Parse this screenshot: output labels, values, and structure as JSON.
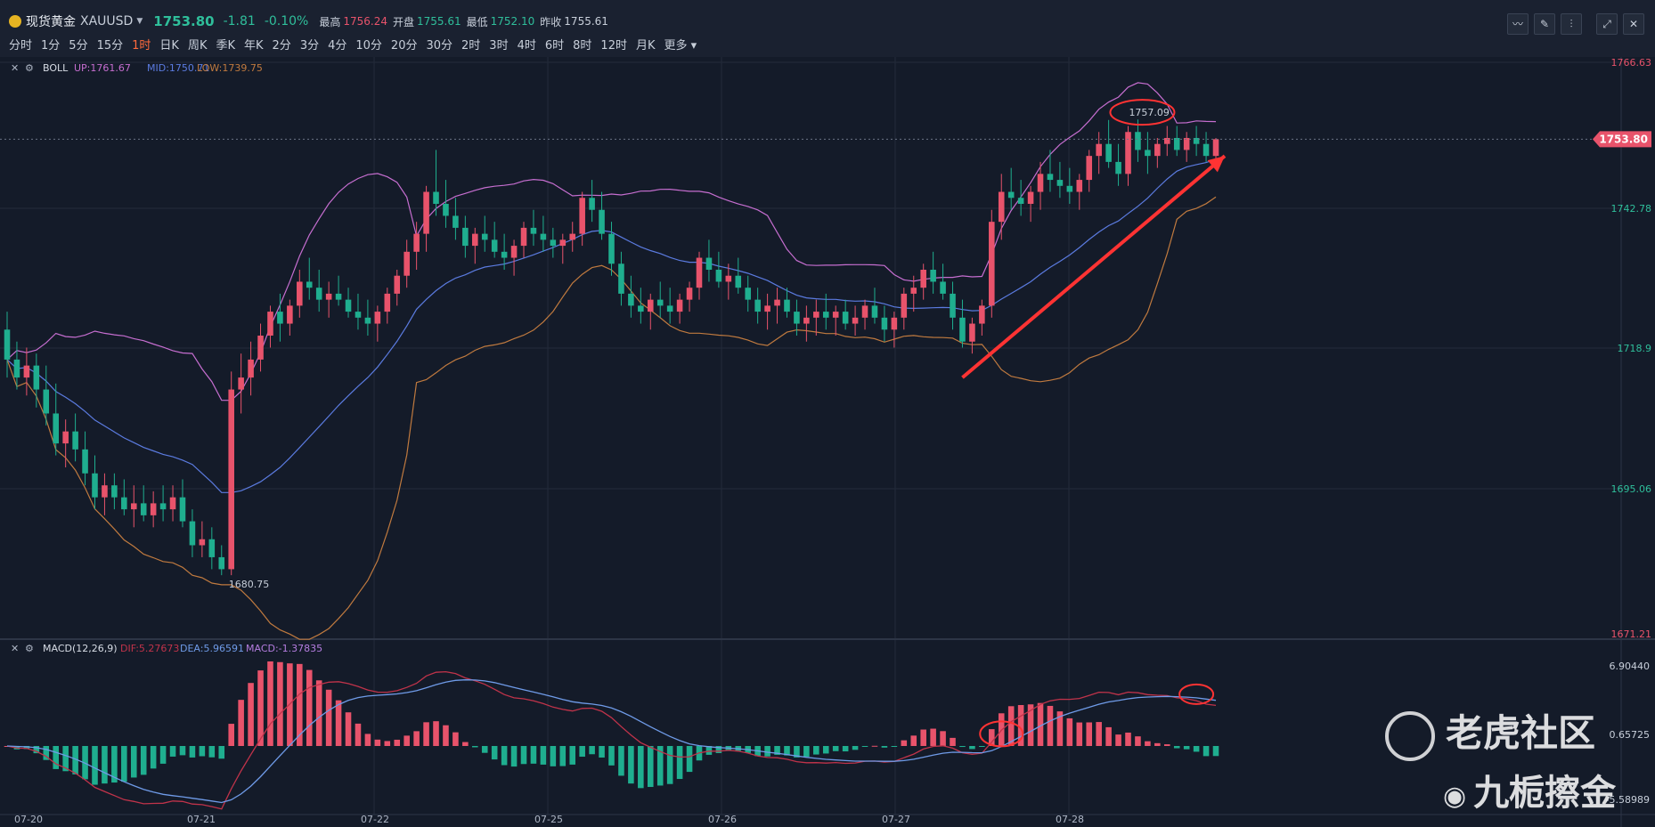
{
  "header": {
    "name": "现货黄金",
    "code": "XAUUSD",
    "price": "1753.80",
    "change": "-1.81",
    "change_pct": "-0.10%",
    "high_label": "最高",
    "high": "1756.24",
    "open_label": "开盘",
    "open": "1755.61",
    "low_label": "最低",
    "low": "1752.10",
    "prev_label": "昨收",
    "prev": "1755.61"
  },
  "periods": [
    "分时",
    "1分",
    "5分",
    "15分",
    "1时",
    "日K",
    "周K",
    "季K",
    "年K",
    "2分",
    "3分",
    "4分",
    "10分",
    "20分",
    "30分",
    "2时",
    "3时",
    "4时",
    "6时",
    "8时",
    "12时",
    "月K",
    "更多"
  ],
  "active_period": "1时",
  "toolbar_icons": [
    "indicator-line-icon",
    "draw-pen-icon",
    "candle-type-icon",
    "fullscreen-icon",
    "close-icon"
  ],
  "colors": {
    "up": "#e8536b",
    "down": "#1fae8f",
    "boll_up": "#c66ed0",
    "boll_mid": "#5b7be0",
    "boll_low": "#c07a3f",
    "dif": "#c0334a",
    "dea": "#6f9be8",
    "annotation": "#ff3333",
    "background": "#141b29"
  },
  "boll_legend": {
    "title": "BOLL",
    "up": "UP:1761.67",
    "mid": "MID:1750.71",
    "low": "LOW:1739.75"
  },
  "macd_legend": {
    "title": "MACD(12,26,9)",
    "dif": "DIF:5.27673",
    "dea": "DEA:5.96591",
    "macd": "MACD:-1.37835"
  },
  "price_axis": [
    "1766.63",
    "1742.78",
    "1718.9",
    "1695.06",
    "1671.21"
  ],
  "macd_axis": [
    "6.90440",
    "0.65725",
    "-5.58989"
  ],
  "current_price_tag": "1753.80",
  "annotations": {
    "high": "1757.09",
    "low": "1680.75"
  },
  "watermark": {
    "text1": "老虎社区",
    "text2": "九栀擦金"
  },
  "chart_data": {
    "type": "candlestick",
    "x_labels": [
      "07-20",
      "07-21",
      "07-22",
      "07-25",
      "07-26",
      "07-27",
      "07-28"
    ],
    "ylim": [
      1671.21,
      1766.63
    ],
    "candles_ohlc": [
      [
        1722,
        1725,
        1714,
        1717
      ],
      [
        1717,
        1720,
        1712,
        1714
      ],
      [
        1714,
        1719,
        1711,
        1716
      ],
      [
        1716,
        1718,
        1709,
        1712
      ],
      [
        1712,
        1716,
        1706,
        1708
      ],
      [
        1708,
        1713,
        1701,
        1703
      ],
      [
        1703,
        1707,
        1699,
        1705
      ],
      [
        1705,
        1708,
        1700,
        1702
      ],
      [
        1702,
        1705,
        1696,
        1698
      ],
      [
        1698,
        1701,
        1692,
        1694
      ],
      [
        1694,
        1698,
        1691,
        1696
      ],
      [
        1696,
        1698,
        1692,
        1694
      ],
      [
        1694,
        1697,
        1691,
        1692
      ],
      [
        1692,
        1696,
        1689,
        1693
      ],
      [
        1693,
        1696,
        1690,
        1691
      ],
      [
        1691,
        1695,
        1689,
        1693
      ],
      [
        1693,
        1696,
        1690,
        1692
      ],
      [
        1692,
        1696,
        1690,
        1694
      ],
      [
        1694,
        1697,
        1689,
        1690
      ],
      [
        1690,
        1692,
        1684,
        1686
      ],
      [
        1686,
        1690,
        1684,
        1687
      ],
      [
        1687,
        1689,
        1682,
        1684
      ],
      [
        1684,
        1686,
        1681,
        1682
      ],
      [
        1682,
        1715,
        1681,
        1712
      ],
      [
        1712,
        1718,
        1708,
        1714
      ],
      [
        1714,
        1720,
        1711,
        1717
      ],
      [
        1717,
        1723,
        1715,
        1721
      ],
      [
        1721,
        1726,
        1719,
        1725
      ],
      [
        1725,
        1728,
        1720,
        1723
      ],
      [
        1723,
        1727,
        1721,
        1726
      ],
      [
        1726,
        1732,
        1724,
        1730
      ],
      [
        1730,
        1734,
        1727,
        1729
      ],
      [
        1729,
        1732,
        1725,
        1727
      ],
      [
        1727,
        1730,
        1724,
        1728
      ],
      [
        1728,
        1731,
        1726,
        1727
      ],
      [
        1727,
        1729,
        1724,
        1725
      ],
      [
        1725,
        1728,
        1722,
        1724
      ],
      [
        1724,
        1727,
        1721,
        1723
      ],
      [
        1723,
        1726,
        1720,
        1725
      ],
      [
        1725,
        1729,
        1723,
        1728
      ],
      [
        1728,
        1732,
        1726,
        1731
      ],
      [
        1731,
        1737,
        1729,
        1735
      ],
      [
        1735,
        1740,
        1732,
        1738
      ],
      [
        1738,
        1746,
        1735,
        1745
      ],
      [
        1745,
        1752,
        1741,
        1743
      ],
      [
        1743,
        1747,
        1739,
        1741
      ],
      [
        1741,
        1744,
        1737,
        1739
      ],
      [
        1739,
        1741,
        1734,
        1736
      ],
      [
        1736,
        1739,
        1733,
        1738
      ],
      [
        1738,
        1741,
        1735,
        1737
      ],
      [
        1737,
        1740,
        1734,
        1735
      ],
      [
        1735,
        1738,
        1732,
        1734
      ],
      [
        1734,
        1737,
        1731,
        1736
      ],
      [
        1736,
        1740,
        1734,
        1739
      ],
      [
        1739,
        1742,
        1736,
        1738
      ],
      [
        1738,
        1741,
        1735,
        1737
      ],
      [
        1737,
        1739,
        1734,
        1736
      ],
      [
        1736,
        1738,
        1733,
        1737
      ],
      [
        1737,
        1740,
        1735,
        1738
      ],
      [
        1738,
        1745,
        1736,
        1744
      ],
      [
        1744,
        1747,
        1740,
        1742
      ],
      [
        1742,
        1745,
        1737,
        1738
      ],
      [
        1738,
        1740,
        1731,
        1733
      ],
      [
        1733,
        1735,
        1726,
        1728
      ],
      [
        1728,
        1731,
        1724,
        1726
      ],
      [
        1726,
        1729,
        1723,
        1725
      ],
      [
        1725,
        1728,
        1722,
        1727
      ],
      [
        1727,
        1730,
        1724,
        1726
      ],
      [
        1726,
        1729,
        1723,
        1725
      ],
      [
        1725,
        1728,
        1723,
        1727
      ],
      [
        1727,
        1730,
        1725,
        1729
      ],
      [
        1729,
        1735,
        1727,
        1734
      ],
      [
        1734,
        1737,
        1730,
        1732
      ],
      [
        1732,
        1735,
        1729,
        1730
      ],
      [
        1730,
        1733,
        1727,
        1731
      ],
      [
        1731,
        1734,
        1728,
        1729
      ],
      [
        1729,
        1731,
        1725,
        1727
      ],
      [
        1727,
        1729,
        1723,
        1725
      ],
      [
        1725,
        1728,
        1722,
        1726
      ],
      [
        1726,
        1729,
        1723,
        1727
      ],
      [
        1727,
        1729,
        1724,
        1725
      ],
      [
        1725,
        1727,
        1721,
        1723
      ],
      [
        1723,
        1726,
        1720,
        1724
      ],
      [
        1724,
        1727,
        1721,
        1725
      ],
      [
        1725,
        1728,
        1722,
        1724
      ],
      [
        1724,
        1726,
        1721,
        1725
      ],
      [
        1725,
        1727,
        1722,
        1723
      ],
      [
        1723,
        1726,
        1721,
        1724
      ],
      [
        1724,
        1727,
        1722,
        1726
      ],
      [
        1726,
        1729,
        1723,
        1724
      ],
      [
        1724,
        1726,
        1720,
        1722
      ],
      [
        1722,
        1725,
        1719,
        1724
      ],
      [
        1724,
        1729,
        1722,
        1728
      ],
      [
        1728,
        1731,
        1725,
        1729
      ],
      [
        1729,
        1733,
        1727,
        1732
      ],
      [
        1732,
        1735,
        1728,
        1730
      ],
      [
        1730,
        1733,
        1727,
        1728
      ],
      [
        1728,
        1730,
        1722,
        1724
      ],
      [
        1724,
        1727,
        1719,
        1720
      ],
      [
        1720,
        1724,
        1718,
        1723
      ],
      [
        1723,
        1727,
        1721,
        1726
      ],
      [
        1726,
        1742,
        1724,
        1740
      ],
      [
        1740,
        1748,
        1737,
        1745
      ],
      [
        1745,
        1749,
        1742,
        1744
      ],
      [
        1744,
        1747,
        1741,
        1743
      ],
      [
        1743,
        1746,
        1740,
        1745
      ],
      [
        1745,
        1750,
        1742,
        1748
      ],
      [
        1748,
        1752,
        1745,
        1747
      ],
      [
        1747,
        1750,
        1744,
        1746
      ],
      [
        1746,
        1749,
        1743,
        1745
      ],
      [
        1745,
        1748,
        1742,
        1747
      ],
      [
        1747,
        1752,
        1745,
        1751
      ],
      [
        1751,
        1755,
        1748,
        1753
      ],
      [
        1753,
        1757,
        1749,
        1750
      ],
      [
        1750,
        1753,
        1746,
        1748
      ],
      [
        1748,
        1756,
        1746,
        1755
      ],
      [
        1755,
        1757.09,
        1750,
        1752
      ],
      [
        1752,
        1755,
        1748,
        1751
      ],
      [
        1751,
        1754,
        1749,
        1753
      ],
      [
        1753,
        1756,
        1751,
        1754
      ],
      [
        1754,
        1756,
        1751,
        1752
      ],
      [
        1752,
        1755,
        1750,
        1754
      ],
      [
        1754,
        1756,
        1751,
        1753
      ],
      [
        1753,
        1755,
        1750,
        1751
      ],
      [
        1751,
        1754,
        1750,
        1753.8
      ]
    ],
    "series": [
      {
        "name": "BOLL UP"
      },
      {
        "name": "BOLL MID"
      },
      {
        "name": "BOLL LOW"
      },
      {
        "name": "DIF"
      },
      {
        "name": "DEA"
      },
      {
        "name": "MACD"
      }
    ]
  }
}
